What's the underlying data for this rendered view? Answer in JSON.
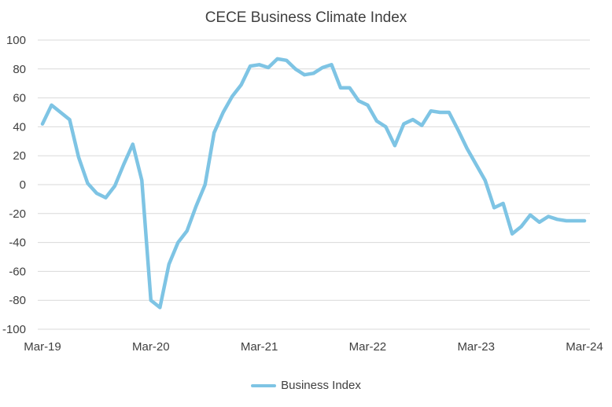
{
  "chart_data": {
    "type": "line",
    "title": "CECE Business Climate Index",
    "xlabel": "",
    "ylabel": "",
    "ylim": [
      -100,
      100
    ],
    "y_ticks": [
      100,
      80,
      60,
      40,
      20,
      0,
      -20,
      -40,
      -60,
      -80,
      -100
    ],
    "x_tick_labels": [
      "Mar-19",
      "Mar-20",
      "Mar-21",
      "Mar-22",
      "Mar-23",
      "Mar-24"
    ],
    "grid": true,
    "legend": "bottom",
    "series": [
      {
        "name": "Business Index",
        "color": "#7EC4E4",
        "x": [
          "Mar-19",
          "Apr-19",
          "May-19",
          "Jun-19",
          "Jul-19",
          "Aug-19",
          "Sep-19",
          "Oct-19",
          "Nov-19",
          "Dec-19",
          "Jan-20",
          "Feb-20",
          "Mar-20",
          "Apr-20",
          "May-20",
          "Jun-20",
          "Jul-20",
          "Aug-20",
          "Sep-20",
          "Oct-20",
          "Nov-20",
          "Dec-20",
          "Jan-21",
          "Feb-21",
          "Mar-21",
          "Apr-21",
          "May-21",
          "Jun-21",
          "Jul-21",
          "Aug-21",
          "Sep-21",
          "Oct-21",
          "Nov-21",
          "Dec-21",
          "Jan-22",
          "Feb-22",
          "Mar-22",
          "Apr-22",
          "May-22",
          "Jun-22",
          "Jul-22",
          "Aug-22",
          "Sep-22",
          "Oct-22",
          "Nov-22",
          "Dec-22",
          "Jan-23",
          "Feb-23",
          "Mar-23",
          "Apr-23",
          "May-23",
          "Jun-23",
          "Jul-23",
          "Aug-23",
          "Sep-23",
          "Oct-23",
          "Nov-23",
          "Dec-23",
          "Jan-24",
          "Feb-24",
          "Mar-24"
        ],
        "values": [
          42,
          55,
          50,
          45,
          19,
          1,
          -6,
          -9,
          -1,
          14,
          28,
          3,
          -80,
          -85,
          -55,
          -40,
          -32,
          -15,
          0,
          36,
          50,
          61,
          69,
          82,
          83,
          81,
          87,
          86,
          80,
          76,
          77,
          81,
          83,
          67,
          67,
          58,
          55,
          44,
          40,
          27,
          42,
          45,
          41,
          51,
          50,
          50,
          38,
          25,
          14,
          3,
          -16,
          -13,
          -34,
          -29,
          -21,
          -26,
          -22,
          -24,
          -25,
          -25,
          -25
        ]
      }
    ]
  }
}
